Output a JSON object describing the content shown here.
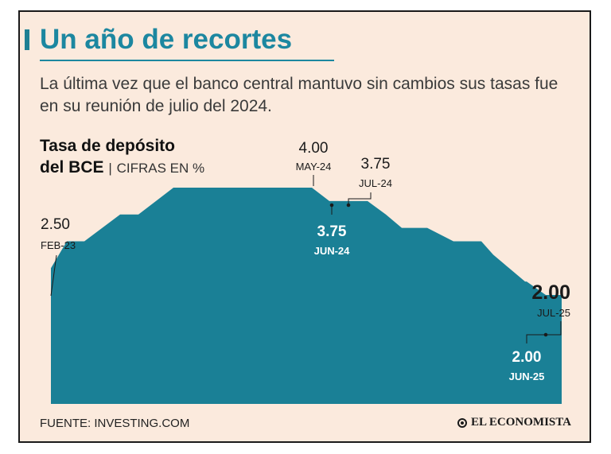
{
  "header": {
    "title": "Un año de recortes",
    "subtitle": "La última vez que el banco central mantuvo sin cambios sus tasas fue en su reunión de julio del 2024."
  },
  "chart_data": {
    "type": "area",
    "title_line1": "Tasa de depósito",
    "title_line2_bold": "del BCE",
    "title_separator": "|",
    "title_unit": "CIFRAS EN %",
    "color": "#1a8096",
    "ylim": [
      0,
      4.25
    ],
    "steps": [
      2.5,
      3.0,
      3.5,
      4.0,
      3.75,
      3.5,
      3.25,
      3.0,
      2.75,
      2.5,
      2.25,
      2.0
    ],
    "annotations": [
      {
        "value": "2.50",
        "date": "FEB-23",
        "step": 0
      },
      {
        "value": "4.00",
        "date": "MAY-24",
        "step": 3
      },
      {
        "value": "3.75",
        "date": "JUN-24",
        "step": 4
      },
      {
        "value": "3.75",
        "date": "JUL-24",
        "step": 4
      },
      {
        "value": "2.00",
        "date": "JUN-25",
        "step": 11
      },
      {
        "value": "2.00",
        "date": "JUL-25",
        "step": 11
      }
    ]
  },
  "footer": {
    "source": "FUENTE: INVESTING.COM",
    "brand": "EL ECONOMISTA",
    "brand_icon": "el-economista-logo-icon"
  }
}
